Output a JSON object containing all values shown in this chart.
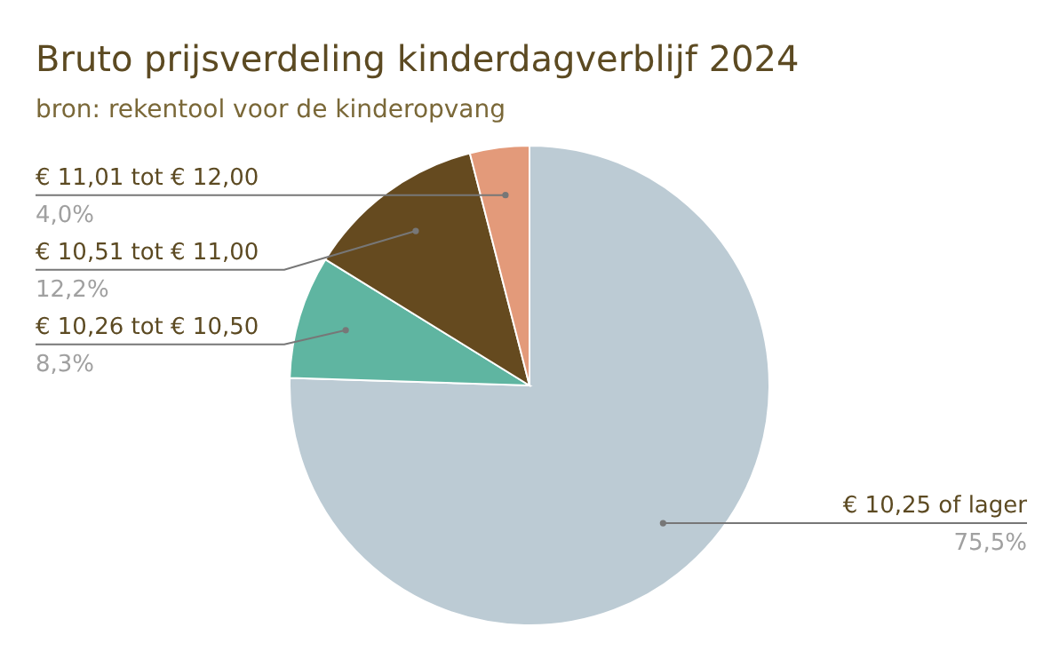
{
  "chart_data": {
    "type": "pie",
    "title": "Bruto prijsverdeling kinderdagverblijf 2024",
    "subtitle": "bron: rekentool voor de kinderopvang",
    "categories": [
      "€ 10,25 of lager",
      "€ 10,26 tot € 10,50",
      "€ 10,51 tot € 11,00",
      "€ 11,01 tot € 12,00"
    ],
    "values": [
      75.5,
      8.3,
      12.2,
      4.0
    ],
    "value_labels": [
      "75,5%",
      "8,3%",
      "12,2%",
      "4,0%"
    ],
    "colors": [
      "#bccbd4",
      "#5fb5a1",
      "#654a1f",
      "#e39a7a"
    ]
  }
}
